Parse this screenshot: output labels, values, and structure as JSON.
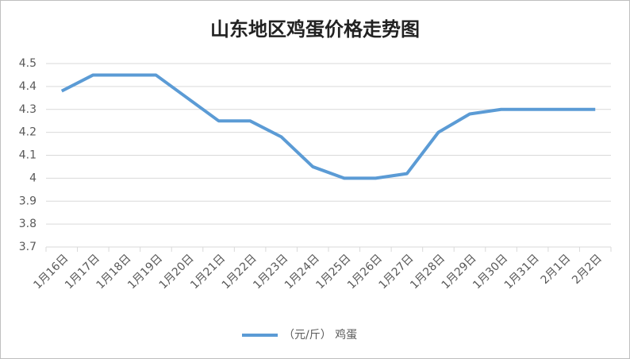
{
  "chart_data": {
    "type": "line",
    "title": "山东地区鸡蛋价格走势图",
    "categories": [
      "1月16日",
      "1月17日",
      "1月18日",
      "1月19日",
      "1月20日",
      "1月21日",
      "1月22日",
      "1月23日",
      "1月24日",
      "1月25日",
      "1月26日",
      "1月27日",
      "1月28日",
      "1月29日",
      "1月30日",
      "1月31日",
      "2月1日",
      "2月2日"
    ],
    "series": [
      {
        "name": "（元/斤） 鸡蛋",
        "color": "#5b9bd5",
        "values": [
          4.38,
          4.45,
          4.45,
          4.45,
          4.35,
          4.25,
          4.25,
          4.18,
          4.05,
          4.0,
          4.0,
          4.02,
          4.2,
          4.28,
          4.3,
          4.3,
          4.3,
          4.3
        ]
      }
    ],
    "ylim": [
      3.7,
      4.5
    ],
    "yticks": [
      3.7,
      3.8,
      3.9,
      4,
      4.1,
      4.2,
      4.3,
      4.4,
      4.5
    ],
    "grid": true,
    "legend": "bottom"
  }
}
